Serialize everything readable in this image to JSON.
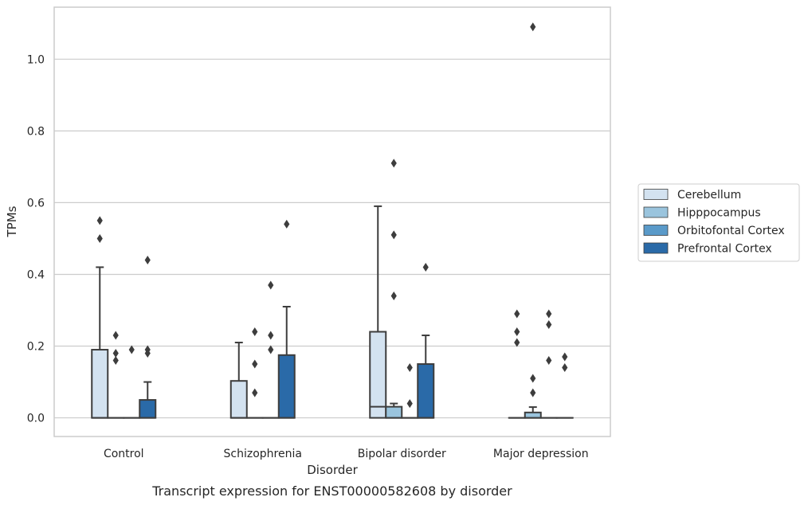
{
  "caption": "Transcript expression for ENST00000582608 by disorder",
  "chart_data": {
    "type": "box",
    "xlabel": "Disorder",
    "ylabel": "TPMs",
    "ylim": [
      -0.052,
      1.145
    ],
    "yticks": [
      0.0,
      0.2,
      0.4,
      0.6,
      0.8,
      1.0
    ],
    "ytick_labels": [
      "0.0",
      "0.2",
      "0.4",
      "0.6",
      "0.8",
      "1.0"
    ],
    "grid": "horizontal",
    "legend_position": "right",
    "categories": [
      "Control",
      "Schizophrenia",
      "Bipolar disorder",
      "Major depression"
    ],
    "series": [
      {
        "name": "Cerebellum",
        "color": "#d3e2f0",
        "boxes": [
          {
            "min": 0.0,
            "q1": 0.0,
            "median": 0.0,
            "q3": 0.19,
            "max": 0.42,
            "outliers": [
              0.5,
              0.55
            ]
          },
          {
            "min": 0.0,
            "q1": 0.0,
            "median": 0.0,
            "q3": 0.103,
            "max": 0.21,
            "outliers": []
          },
          {
            "min": 0.0,
            "q1": 0.0,
            "median": 0.031,
            "q3": 0.24,
            "max": 0.59,
            "outliers": []
          },
          {
            "min": 0.0,
            "q1": 0.0,
            "median": 0.0,
            "q3": 0.0,
            "max": 0.0,
            "outliers": [
              0.21,
              0.24,
              0.29
            ]
          }
        ]
      },
      {
        "name": "Hipppocampus",
        "color": "#9ac4dd",
        "boxes": [
          {
            "min": 0.0,
            "q1": 0.0,
            "median": 0.0,
            "q3": 0.0,
            "max": 0.0,
            "outliers": [
              0.16,
              0.18,
              0.23
            ]
          },
          {
            "min": 0.0,
            "q1": 0.0,
            "median": 0.0,
            "q3": 0.0,
            "max": 0.0,
            "outliers": [
              0.07,
              0.15,
              0.24
            ]
          },
          {
            "min": 0.0,
            "q1": 0.0,
            "median": 0.0,
            "q3": 0.031,
            "max": 0.04,
            "outliers": [
              0.34,
              0.51,
              0.71
            ]
          },
          {
            "min": 0.0,
            "q1": 0.0,
            "median": 0.0,
            "q3": 0.015,
            "max": 0.03,
            "outliers": [
              0.07,
              0.11,
              1.09
            ]
          }
        ]
      },
      {
        "name": "Orbitofontal Cortex",
        "color": "#5a9ac9",
        "boxes": [
          {
            "min": 0.0,
            "q1": 0.0,
            "median": 0.0,
            "q3": 0.0,
            "max": 0.0,
            "outliers": [
              0.19
            ]
          },
          {
            "min": 0.0,
            "q1": 0.0,
            "median": 0.0,
            "q3": 0.0,
            "max": 0.0,
            "outliers": [
              0.19,
              0.23,
              0.37
            ]
          },
          {
            "min": 0.0,
            "q1": 0.0,
            "median": 0.0,
            "q3": 0.0,
            "max": 0.0,
            "outliers": [
              0.04,
              0.14
            ]
          },
          {
            "min": 0.0,
            "q1": 0.0,
            "median": 0.0,
            "q3": 0.0,
            "max": 0.0,
            "outliers": [
              0.16,
              0.26,
              0.29
            ]
          }
        ]
      },
      {
        "name": "Prefrontal Cortex",
        "color": "#2a6aa8",
        "boxes": [
          {
            "min": 0.0,
            "q1": 0.0,
            "median": 0.0,
            "q3": 0.05,
            "max": 0.1,
            "outliers": [
              0.18,
              0.19,
              0.44
            ]
          },
          {
            "min": 0.0,
            "q1": 0.0,
            "median": 0.0,
            "q3": 0.175,
            "max": 0.31,
            "outliers": [
              0.54
            ]
          },
          {
            "min": 0.0,
            "q1": 0.0,
            "median": 0.0,
            "q3": 0.15,
            "max": 0.23,
            "outliers": [
              0.42
            ]
          },
          {
            "min": 0.0,
            "q1": 0.0,
            "median": 0.0,
            "q3": 0.0,
            "max": 0.0,
            "outliers": [
              0.14,
              0.17
            ]
          }
        ]
      }
    ]
  }
}
